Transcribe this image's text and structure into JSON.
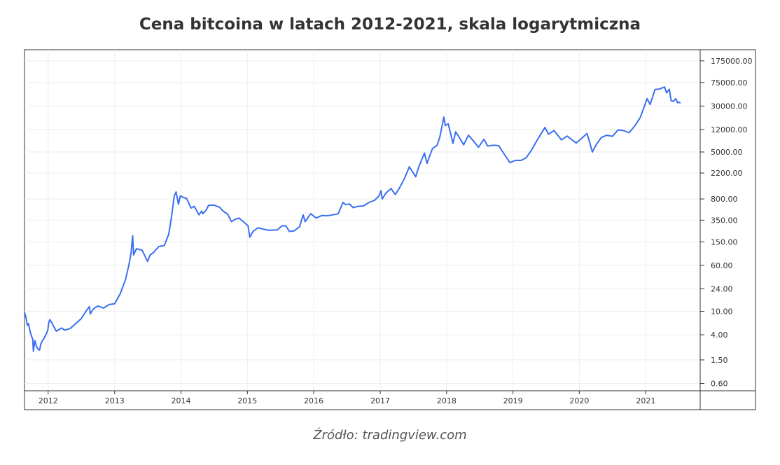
{
  "chart_data": {
    "type": "line",
    "title": "Cena bitcoina w latach 2012-2021, skala logarytmiczna",
    "source": "Źródło: tradingview.com",
    "y_scale": "log",
    "grid": true,
    "legend": "none",
    "line_color": "#3a6ff0",
    "x_ticks": [
      "2012",
      "2013",
      "2014",
      "2015",
      "2016",
      "2017",
      "2018",
      "2019",
      "2020",
      "2021"
    ],
    "y_ticks": [
      "175000.00",
      "75000.00",
      "30000.00",
      "12000.00",
      "5000.00",
      "2200.00",
      "800.00",
      "350.00",
      "150.00",
      "60.00",
      "24.00",
      "10.00",
      "4.00",
      "1.50",
      "0.60"
    ],
    "xlim": [
      "2011-08-24",
      "2021-10-27"
    ],
    "ylim": [
      0.45,
      270000
    ],
    "series": [
      {
        "points": [
          [
            "2011-08-24",
            9.5
          ],
          [
            "2011-09-01",
            8.0
          ],
          [
            "2011-09-08",
            5.8
          ],
          [
            "2011-09-15",
            6.2
          ],
          [
            "2011-09-22",
            4.8
          ],
          [
            "2011-10-01",
            3.8
          ],
          [
            "2011-10-08",
            3.4
          ],
          [
            "2011-10-12",
            2.1
          ],
          [
            "2011-10-20",
            3.2
          ],
          [
            "2011-10-28",
            2.6
          ],
          [
            "2011-11-05",
            2.3
          ],
          [
            "2011-11-15",
            2.2
          ],
          [
            "2011-11-22",
            2.8
          ],
          [
            "2011-12-01",
            3.2
          ],
          [
            "2011-12-10",
            3.5
          ],
          [
            "2011-12-20",
            4.0
          ],
          [
            "2011-12-30",
            4.8
          ],
          [
            "2012-01-05",
            6.5
          ],
          [
            "2012-01-10",
            7.2
          ],
          [
            "2012-01-20",
            6.5
          ],
          [
            "2012-02-01",
            5.5
          ],
          [
            "2012-02-15",
            4.6
          ],
          [
            "2012-03-01",
            4.9
          ],
          [
            "2012-03-15",
            5.2
          ],
          [
            "2012-04-01",
            4.8
          ],
          [
            "2012-05-01",
            5.1
          ],
          [
            "2012-06-01",
            6.2
          ],
          [
            "2012-07-01",
            7.5
          ],
          [
            "2012-08-01",
            10.5
          ],
          [
            "2012-08-15",
            12.0
          ],
          [
            "2012-08-20",
            9.0
          ],
          [
            "2012-09-01",
            10.5
          ],
          [
            "2012-09-15",
            11.5
          ],
          [
            "2012-10-01",
            12.3
          ],
          [
            "2012-11-01",
            11.3
          ],
          [
            "2012-12-01",
            13.0
          ],
          [
            "2013-01-01",
            13.4
          ],
          [
            "2013-02-01",
            20.0
          ],
          [
            "2013-03-01",
            34.0
          ],
          [
            "2013-03-20",
            60.0
          ],
          [
            "2013-04-01",
            95.0
          ],
          [
            "2013-04-10",
            190.0
          ],
          [
            "2013-04-15",
            90.0
          ],
          [
            "2013-05-01",
            115.0
          ],
          [
            "2013-06-01",
            108.0
          ],
          [
            "2013-07-01",
            70.0
          ],
          [
            "2013-07-15",
            90.0
          ],
          [
            "2013-08-01",
            98.0
          ],
          [
            "2013-09-01",
            125.0
          ],
          [
            "2013-10-01",
            130.0
          ],
          [
            "2013-10-25",
            200.0
          ],
          [
            "2013-11-10",
            400.0
          ],
          [
            "2013-11-25",
            900.0
          ],
          [
            "2013-12-05",
            1050.0
          ],
          [
            "2013-12-18",
            650.0
          ],
          [
            "2013-12-28",
            900.0
          ],
          [
            "2014-01-15",
            850.0
          ],
          [
            "2014-02-01",
            810.0
          ],
          [
            "2014-02-25",
            560.0
          ],
          [
            "2014-03-15",
            600.0
          ],
          [
            "2014-04-10",
            430.0
          ],
          [
            "2014-04-25",
            500.0
          ],
          [
            "2014-05-01",
            450.0
          ],
          [
            "2014-05-20",
            520.0
          ],
          [
            "2014-06-01",
            620.0
          ],
          [
            "2014-07-01",
            630.0
          ],
          [
            "2014-08-01",
            580.0
          ],
          [
            "2014-08-20",
            500.0
          ],
          [
            "2014-09-15",
            440.0
          ],
          [
            "2014-10-05",
            330.0
          ],
          [
            "2014-10-25",
            360.0
          ],
          [
            "2014-11-15",
            380.0
          ],
          [
            "2014-12-15",
            320.0
          ],
          [
            "2015-01-05",
            280.0
          ],
          [
            "2015-01-14",
            180.0
          ],
          [
            "2015-02-01",
            225.0
          ],
          [
            "2015-03-01",
            260.0
          ],
          [
            "2015-04-01",
            245.0
          ],
          [
            "2015-05-01",
            235.0
          ],
          [
            "2015-06-15",
            240.0
          ],
          [
            "2015-07-10",
            280.0
          ],
          [
            "2015-08-01",
            280.0
          ],
          [
            "2015-08-20",
            225.0
          ],
          [
            "2015-09-15",
            230.0
          ],
          [
            "2015-10-15",
            270.0
          ],
          [
            "2015-11-04",
            430.0
          ],
          [
            "2015-11-15",
            330.0
          ],
          [
            "2015-12-15",
            450.0
          ],
          [
            "2016-01-15",
            380.0
          ],
          [
            "2016-02-15",
            420.0
          ],
          [
            "2016-03-15",
            415.0
          ],
          [
            "2016-04-15",
            430.0
          ],
          [
            "2016-05-15",
            450.0
          ],
          [
            "2016-06-10",
            700.0
          ],
          [
            "2016-06-25",
            640.0
          ],
          [
            "2016-07-15",
            660.0
          ],
          [
            "2016-08-05",
            570.0
          ],
          [
            "2016-09-01",
            600.0
          ],
          [
            "2016-10-01",
            610.0
          ],
          [
            "2016-11-01",
            700.0
          ],
          [
            "2016-12-01",
            760.0
          ],
          [
            "2016-12-25",
            900.0
          ],
          [
            "2017-01-05",
            1100.0
          ],
          [
            "2017-01-12",
            800.0
          ],
          [
            "2017-02-01",
            1000.0
          ],
          [
            "2017-03-01",
            1200.0
          ],
          [
            "2017-03-25",
            950.0
          ],
          [
            "2017-04-15",
            1200.0
          ],
          [
            "2017-05-15",
            1800.0
          ],
          [
            "2017-06-10",
            2800.0
          ],
          [
            "2017-07-15",
            1900.0
          ],
          [
            "2017-08-01",
            2800.0
          ],
          [
            "2017-09-01",
            4800.0
          ],
          [
            "2017-09-15",
            3200.0
          ],
          [
            "2017-10-15",
            5700.0
          ],
          [
            "2017-11-10",
            6500.0
          ],
          [
            "2017-11-25",
            9000.0
          ],
          [
            "2017-12-17",
            19500.0
          ],
          [
            "2017-12-25",
            14000.0
          ],
          [
            "2018-01-10",
            15000.0
          ],
          [
            "2018-02-05",
            7000.0
          ],
          [
            "2018-02-20",
            11000.0
          ],
          [
            "2018-03-10",
            9000.0
          ],
          [
            "2018-04-05",
            6600.0
          ],
          [
            "2018-05-01",
            9600.0
          ],
          [
            "2018-06-01",
            7500.0
          ],
          [
            "2018-06-25",
            6000.0
          ],
          [
            "2018-07-25",
            8200.0
          ],
          [
            "2018-08-15",
            6300.0
          ],
          [
            "2018-09-15",
            6500.0
          ],
          [
            "2018-10-15",
            6400.0
          ],
          [
            "2018-11-20",
            4300.0
          ],
          [
            "2018-12-15",
            3300.0
          ],
          [
            "2019-01-15",
            3600.0
          ],
          [
            "2019-02-15",
            3600.0
          ],
          [
            "2019-03-15",
            4000.0
          ],
          [
            "2019-04-10",
            5200.0
          ],
          [
            "2019-05-15",
            8000.0
          ],
          [
            "2019-06-26",
            13000.0
          ],
          [
            "2019-07-15",
            10000.0
          ],
          [
            "2019-08-15",
            11500.0
          ],
          [
            "2019-09-25",
            8000.0
          ],
          [
            "2019-10-26",
            9300.0
          ],
          [
            "2019-12-15",
            7100.0
          ],
          [
            "2020-01-15",
            8600.0
          ],
          [
            "2020-02-13",
            10300.0
          ],
          [
            "2020-03-13",
            5000.0
          ],
          [
            "2020-04-01",
            6500.0
          ],
          [
            "2020-05-01",
            8800.0
          ],
          [
            "2020-06-01",
            9600.0
          ],
          [
            "2020-07-01",
            9200.0
          ],
          [
            "2020-08-01",
            11800.0
          ],
          [
            "2020-09-01",
            11500.0
          ],
          [
            "2020-10-01",
            10600.0
          ],
          [
            "2020-11-01",
            13800.0
          ],
          [
            "2020-12-01",
            19000.0
          ],
          [
            "2021-01-08",
            40000.0
          ],
          [
            "2021-01-25",
            32000.0
          ],
          [
            "2021-02-20",
            57000.0
          ],
          [
            "2021-03-15",
            58000.0
          ],
          [
            "2021-04-14",
            63000.0
          ],
          [
            "2021-04-25",
            50000.0
          ],
          [
            "2021-05-10",
            58000.0
          ],
          [
            "2021-05-20",
            37000.0
          ],
          [
            "2021-06-01",
            36000.0
          ],
          [
            "2021-06-15",
            40000.0
          ],
          [
            "2021-06-25",
            34000.0
          ],
          [
            "2021-07-01",
            35000.0
          ],
          [
            "2021-07-08",
            34000.0
          ]
        ]
      }
    ]
  },
  "caption": {
    "source": "Źródło: tradingview.com"
  }
}
